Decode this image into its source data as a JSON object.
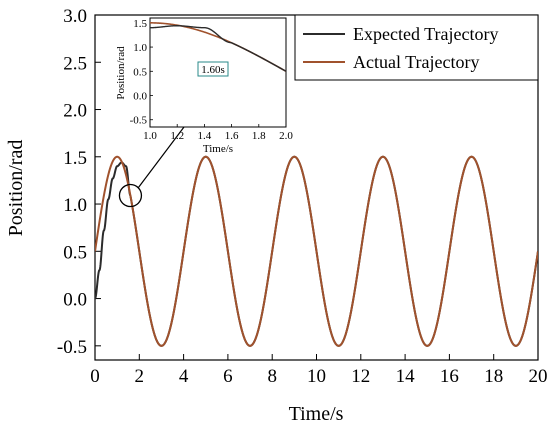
{
  "chart_data": [
    {
      "type": "line",
      "xlabel": "Time/s",
      "ylabel": "Position/rad",
      "xlim": [
        0,
        20
      ],
      "ylim": [
        -0.65,
        3.0
      ],
      "xticks": [
        "0",
        "2",
        "4",
        "6",
        "8",
        "10",
        "12",
        "14",
        "16",
        "18",
        "20"
      ],
      "yticks": [
        "-0.5",
        "0.0",
        "0.5",
        "1.0",
        "1.5",
        "2.0",
        "2.5",
        "3.0"
      ],
      "legend": {
        "position": "top-right"
      },
      "series": [
        {
          "name": "Expected Trajectory",
          "color": "#2b2b2b",
          "expression": "0.5 + sin(pi*t/2) for t >= 1.6; rises 0.0 -> 1.43 over t = 0..1.3",
          "x": [
            0,
            0.2,
            0.4,
            0.6,
            0.8,
            1.0,
            1.2,
            1.4,
            1.6,
            2,
            3,
            4,
            5,
            6,
            7,
            8,
            9,
            10,
            11,
            12,
            13,
            14,
            15,
            16,
            17,
            18,
            19,
            20
          ],
          "values": [
            0.0,
            0.3,
            0.72,
            1.05,
            1.27,
            1.4,
            1.44,
            1.4,
            1.09,
            0.5,
            -0.5,
            0.5,
            1.5,
            0.5,
            -0.5,
            0.5,
            1.5,
            0.5,
            -0.5,
            0.5,
            1.5,
            0.5,
            -0.5,
            0.5,
            1.5,
            0.5,
            -0.5,
            0.5
          ]
        },
        {
          "name": "Actual Trajectory",
          "color": "#a0522d",
          "expression": "0.5 + sin(pi*t/2)",
          "x": [
            0,
            1,
            2,
            3,
            4,
            5,
            6,
            7,
            8,
            9,
            10,
            11,
            12,
            13,
            14,
            15,
            16,
            17,
            18,
            19,
            20
          ],
          "values": [
            0.5,
            1.5,
            0.5,
            -0.5,
            0.5,
            1.5,
            0.5,
            -0.5,
            0.5,
            1.5,
            0.5,
            -0.5,
            0.5,
            1.5,
            0.5,
            -0.5,
            0.5,
            1.5,
            0.5,
            -0.5,
            0.5
          ]
        }
      ],
      "callout": {
        "x": 1.6,
        "y": 1.09
      }
    },
    {
      "type": "line",
      "xlabel": "Time/s",
      "ylabel": "Position/rad",
      "xlim": [
        1.0,
        2.0
      ],
      "ylim": [
        -0.65,
        1.6
      ],
      "xticks": [
        "1.0",
        "1.2",
        "1.4",
        "1.6",
        "1.8",
        "2.0"
      ],
      "yticks": [
        "-0.5",
        "0.0",
        "0.5",
        "1.0",
        "1.5"
      ],
      "annotations": [
        {
          "text": "1.60s",
          "x": 1.6
        }
      ]
    }
  ]
}
